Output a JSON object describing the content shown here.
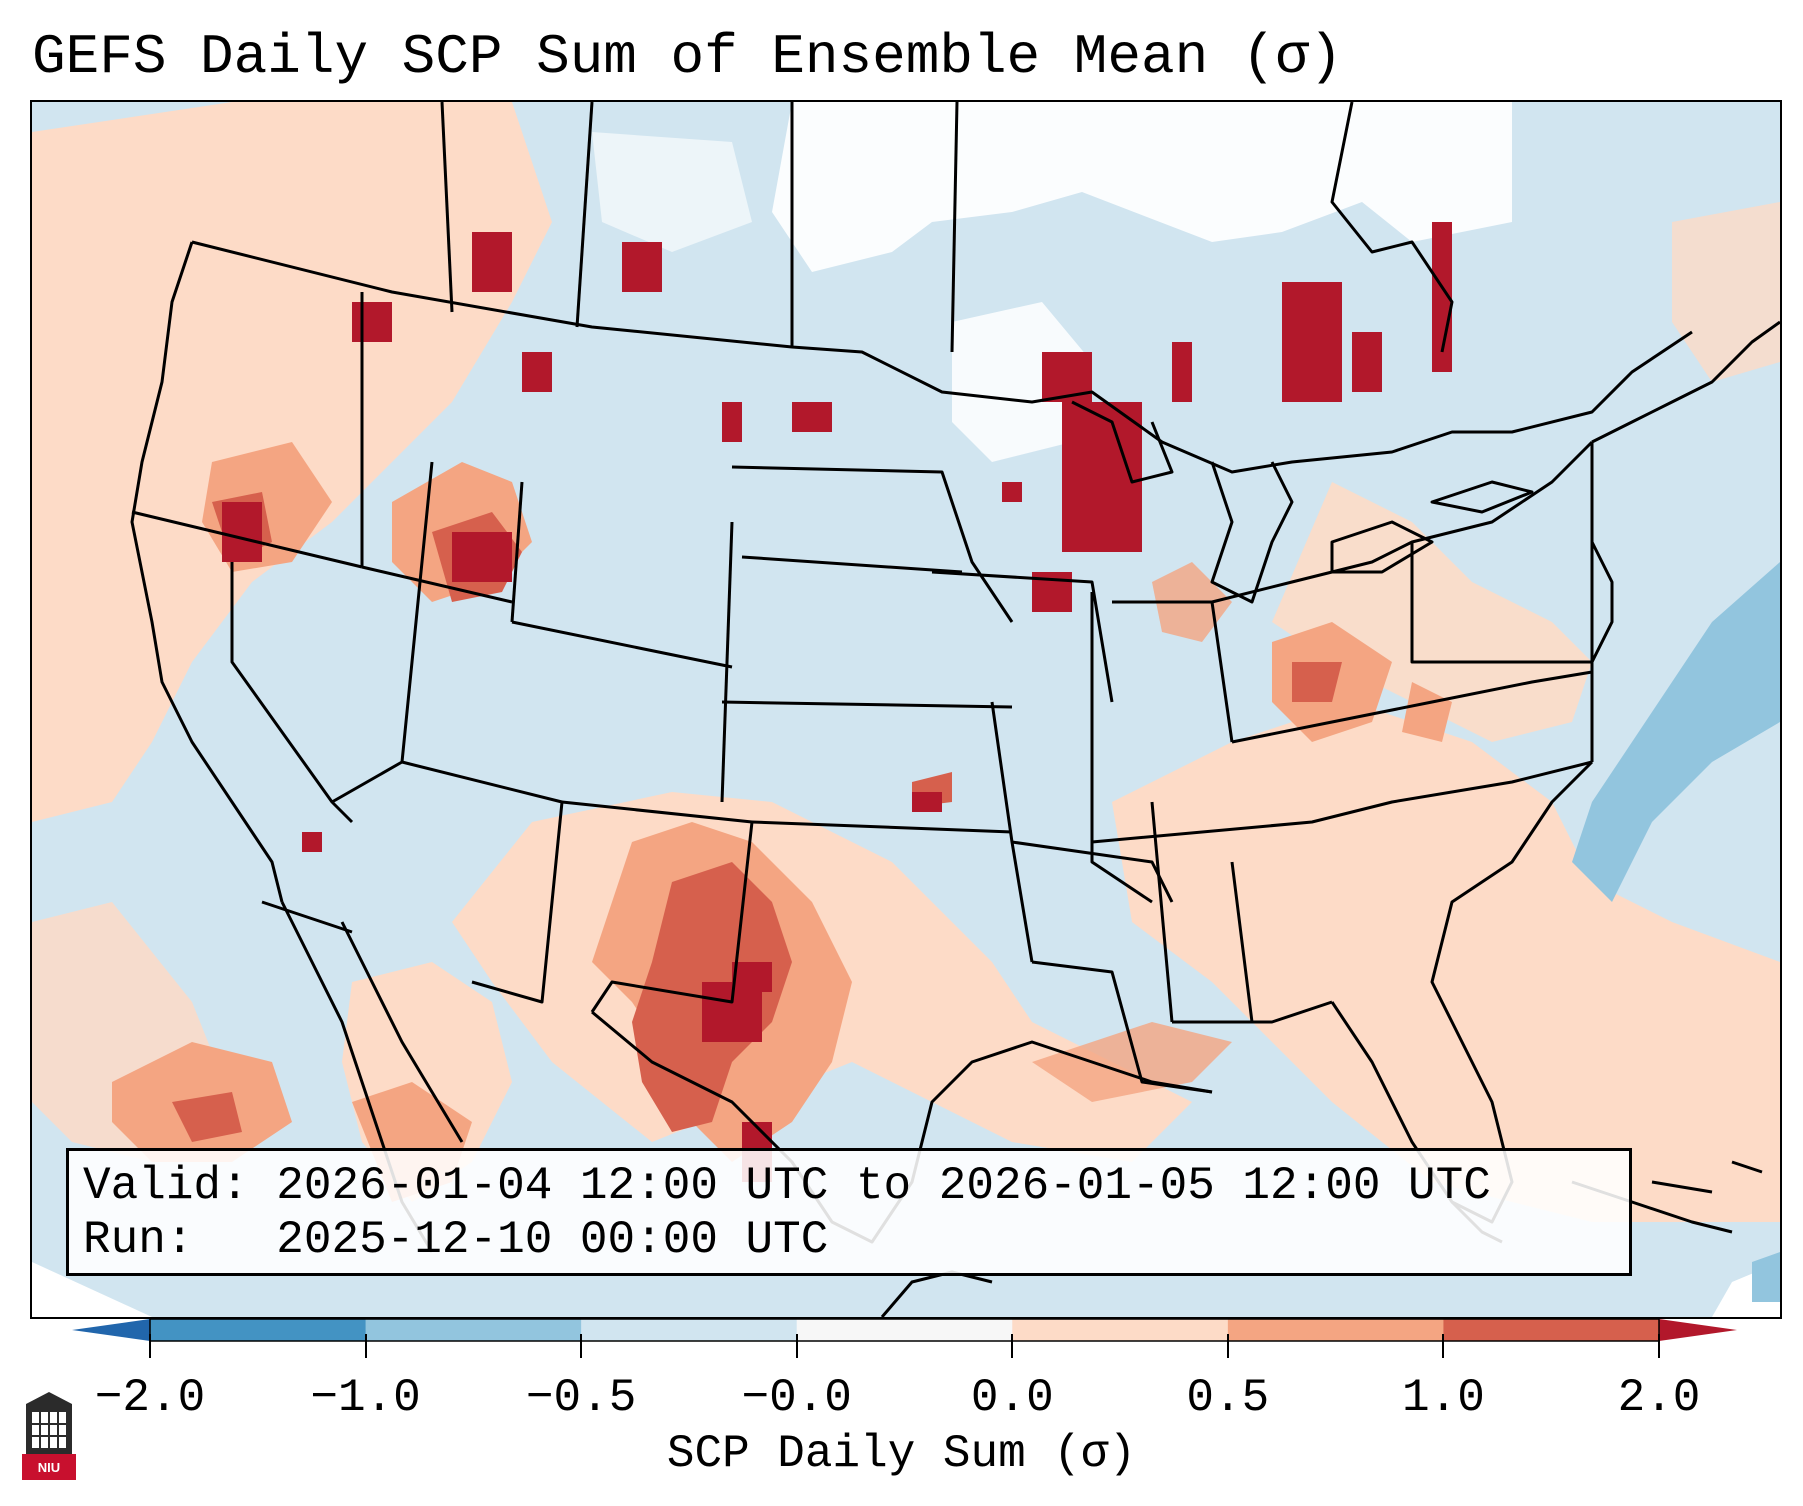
{
  "title": "GEFS Daily SCP Sum of Ensemble Mean (σ)",
  "info": {
    "valid_label": "Valid:",
    "valid_value": "2026-01-04 12:00 UTC to 2026-01-05 12:00 UTC",
    "run_label": "Run:",
    "run_value": "2025-12-10 00:00 UTC"
  },
  "colorbar": {
    "label": "SCP Daily Sum (σ)",
    "ticks": [
      "−2.0",
      "−1.0",
      "−0.5",
      "−0.0",
      "0.0",
      "0.5",
      "1.0",
      "2.0"
    ],
    "bins": [
      {
        "color": "#4393c3"
      },
      {
        "color": "#92c5de"
      },
      {
        "color": "#d1e5f0"
      },
      {
        "color": "#f7f7f7"
      },
      {
        "color": "#fddbc7"
      },
      {
        "color": "#f4a582"
      },
      {
        "color": "#d6604d"
      }
    ],
    "under_color": "#2166ac",
    "over_color": "#b2182b"
  },
  "map": {
    "ocean_color": "#cfe4f0",
    "strong_color": "#b2182b",
    "moderate_color": "#d6604d",
    "light_color": "#f4a582",
    "faint_color": "#fddbc7",
    "neutral_color": "#ffffff",
    "negative_color": "#92c5de",
    "border_color": "#000000"
  },
  "logo": {
    "text": "NIU"
  }
}
